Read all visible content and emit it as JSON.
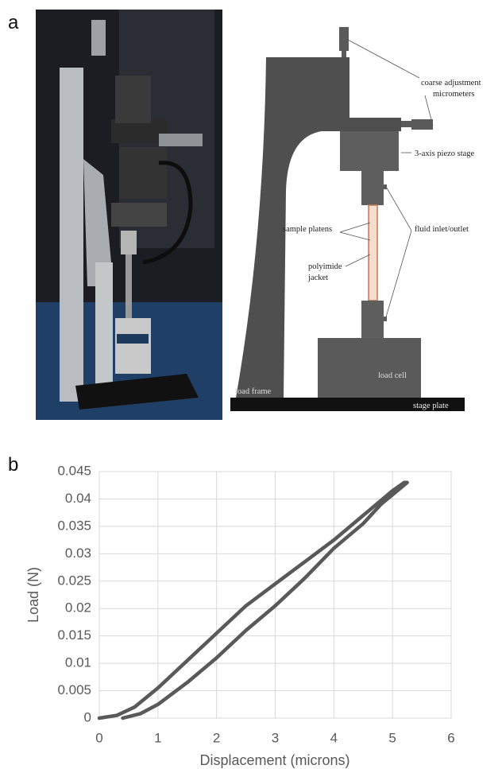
{
  "panel_a": {
    "label": "a",
    "diagram_labels": [
      "coarse adjustment",
      "micrometers",
      "3-axis piezo stage",
      "sample platens",
      "fluid inlet/outlet",
      "polyimide",
      "jacket",
      "load frame",
      "load cell",
      "stage plate"
    ]
  },
  "chart_data": {
    "type": "line",
    "panel_label": "b",
    "x_label": "Displacement (microns)",
    "y_label": "Load (N)",
    "x": [
      0,
      0.3,
      0.6,
      1,
      1.5,
      2,
      2.5,
      3,
      3.5,
      4,
      4.5,
      5,
      5.2,
      5.25,
      4.8,
      4.5,
      4,
      3.5,
      3,
      2.5,
      2,
      1.5,
      1,
      0.7,
      0.4
    ],
    "series": [
      {
        "color": "#595959",
        "values": [
          0,
          0.0005,
          0.002,
          0.0055,
          0.0105,
          0.0155,
          0.0205,
          0.0245,
          0.0285,
          0.0325,
          0.037,
          0.0415,
          0.043,
          0.043,
          0.039,
          0.0355,
          0.031,
          0.0255,
          0.0205,
          0.016,
          0.011,
          0.0065,
          0.0025,
          0.0008,
          0
        ]
      }
    ],
    "xlim": [
      0,
      6
    ],
    "xticks": [
      0,
      1,
      2,
      3,
      4,
      5,
      6
    ],
    "ylim": [
      0,
      0.045
    ],
    "yticks": [
      0,
      0.005,
      0.01,
      0.015,
      0.02,
      0.025,
      0.03,
      0.035,
      0.04,
      0.045
    ],
    "grid": true
  }
}
